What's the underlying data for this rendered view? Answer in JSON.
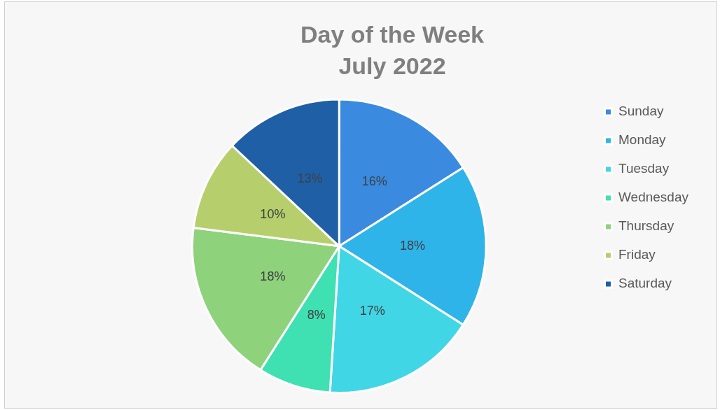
{
  "chart_data": {
    "type": "pie",
    "title": "Day of the Week",
    "subtitle": "July 2022",
    "categories": [
      "Sunday",
      "Monday",
      "Tuesday",
      "Wednesday",
      "Thursday",
      "Friday",
      "Saturday"
    ],
    "values": [
      16,
      18,
      17,
      8,
      18,
      10,
      13
    ],
    "colors": [
      "#3a8ae0",
      "#2fb4ea",
      "#40d6e6",
      "#3fe0b2",
      "#8ed27c",
      "#b6cf6c",
      "#1e5fa6"
    ],
    "value_labels": [
      "16%",
      "18%",
      "17%",
      "8%",
      "18%",
      "10%",
      "13%"
    ],
    "legend": "right"
  }
}
